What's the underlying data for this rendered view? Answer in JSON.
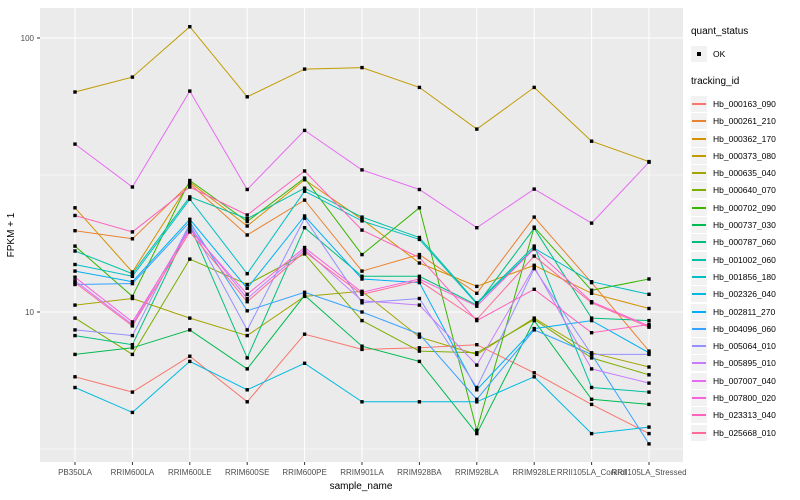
{
  "chart_data": {
    "type": "line",
    "xlabel": "sample_name",
    "ylabel": "FPKM + 1",
    "y_scale": "log10",
    "y_ticks": [
      100,
      10
    ],
    "y_minor_ticks": [
      31.62,
      3.162
    ],
    "ylim": [
      2.84,
      128.6
    ],
    "grid": "on",
    "panel_bg": "#EBEBEB",
    "grid_color": "#FFFFFF",
    "tick_label_color": "#4D4D4D",
    "point_color": "#000000",
    "categories": [
      "PB350LA",
      "RRIM600LA",
      "RRIM600LE",
      "RRIM600SE",
      "RRIM600PE",
      "RRIM901LA",
      "RRIM928BA",
      "RRIM928LA",
      "RRIM928LE",
      "RRII105LA_Control",
      "RRII105LA_Stressed"
    ],
    "series": [
      {
        "name": "Hb_000163_090",
        "color": "#F8766D",
        "values": [
          5.8,
          5.1,
          6.9,
          4.7,
          8.3,
          7.3,
          7.4,
          7.6,
          6.0,
          4.6,
          3.6
        ]
      },
      {
        "name": "Hb_000261_210",
        "color": "#EA8331",
        "values": [
          19.8,
          18.5,
          29.4,
          19.1,
          25.6,
          14.1,
          16.2,
          11.7,
          22.2,
          12.8,
          7.2
        ]
      },
      {
        "name": "Hb_000362_170",
        "color": "#D89000",
        "values": [
          24.0,
          14.0,
          29.8,
          20.6,
          30.4,
          21.8,
          15.1,
          12.4,
          14.8,
          11.7,
          10.3
        ]
      },
      {
        "name": "Hb_000373_080",
        "color": "#C09B00",
        "values": [
          63.5,
          72,
          110,
          61,
          77,
          78,
          66,
          46.5,
          66,
          42,
          35.4
        ]
      },
      {
        "name": "Hb_000635_040",
        "color": "#A3A500",
        "values": [
          10.6,
          11.2,
          9.5,
          8.2,
          11.4,
          11.9,
          8.1,
          7.0,
          9.5,
          7.1,
          6.3
        ]
      },
      {
        "name": "Hb_000640_070",
        "color": "#7CAE00",
        "values": [
          9.5,
          7.0,
          15.6,
          12.6,
          16.3,
          9.3,
          7.2,
          7.1,
          9.4,
          6.8,
          5.9
        ]
      },
      {
        "name": "Hb_000702_090",
        "color": "#39B600",
        "values": [
          17.4,
          11.4,
          30.2,
          21.4,
          30.8,
          16.2,
          24.0,
          3.7,
          20.4,
          12.0,
          13.2
        ]
      },
      {
        "name": "Hb_000737_030",
        "color": "#00BB4E",
        "values": [
          7.0,
          7.4,
          8.6,
          6.2,
          11.5,
          7.5,
          6.6,
          3.6,
          9.3,
          4.8,
          4.6
        ]
      },
      {
        "name": "Hb_000787_060",
        "color": "#00BF7D",
        "values": [
          8.2,
          7.6,
          20.7,
          6.8,
          20.3,
          13.5,
          13.5,
          10.6,
          20.2,
          9.5,
          9.3
        ]
      },
      {
        "name": "Hb_001002_060",
        "color": "#00C1A3",
        "values": [
          16.7,
          13.8,
          26.3,
          21.9,
          28.3,
          22.2,
          18.7,
          10.8,
          17.4,
          5.3,
          5.1
        ]
      },
      {
        "name": "Hb_001856_180",
        "color": "#00BFC4",
        "values": [
          14.9,
          13.5,
          25.8,
          13.8,
          27.6,
          21.5,
          18.4,
          10.7,
          17.1,
          12.9,
          11.6
        ]
      },
      {
        "name": "Hb_002326_040",
        "color": "#00BAE0",
        "values": [
          5.3,
          4.3,
          6.6,
          5.2,
          6.5,
          4.7,
          4.7,
          4.7,
          5.8,
          3.6,
          3.8
        ]
      },
      {
        "name": "Hb_002811_270",
        "color": "#00B0F6",
        "values": [
          14.1,
          12.9,
          21.8,
          12.2,
          22.4,
          13.2,
          12.8,
          5.2,
          8.7,
          9.3,
          7.1
        ]
      },
      {
        "name": "Hb_004096_060",
        "color": "#35A2FF",
        "values": [
          12.6,
          12.7,
          21.3,
          10.1,
          11.8,
          10.0,
          8.3,
          4.8,
          8.6,
          7.0,
          3.3
        ]
      },
      {
        "name": "Hb_005064_010",
        "color": "#9590FF",
        "values": [
          8.6,
          8.2,
          21.0,
          8.6,
          22.0,
          10.8,
          11.2,
          5.3,
          14.4,
          7.0,
          7.0
        ]
      },
      {
        "name": "Hb_005895_010",
        "color": "#C77CFF",
        "values": [
          13.0,
          9.0,
          20.4,
          11.2,
          16.9,
          11.0,
          10.6,
          6.4,
          14.6,
          6.2,
          5.5
        ]
      },
      {
        "name": "Hb_007007_040",
        "color": "#E76BF3",
        "values": [
          41,
          28.6,
          64,
          28,
          46,
          33,
          28,
          20.3,
          28.1,
          21.1,
          35.2
        ]
      },
      {
        "name": "Hb_007800_020",
        "color": "#FA62DB",
        "values": [
          13.4,
          9.2,
          20.0,
          11.6,
          17.2,
          11.8,
          13.2,
          10.5,
          17.0,
          10.9,
          8.9
        ]
      },
      {
        "name": "Hb_023313_040",
        "color": "#FF62BC",
        "values": [
          22.5,
          19.6,
          28.6,
          22.6,
          32.7,
          19.9,
          15.8,
          9.3,
          12.1,
          8.4,
          9.0
        ]
      },
      {
        "name": "Hb_025668_010",
        "color": "#FF6A98",
        "values": [
          12.8,
          8.9,
          19.6,
          10.9,
          16.6,
          11.6,
          13.0,
          9.4,
          16.0,
          10.8,
          8.8
        ]
      }
    ],
    "legend": {
      "quant_title": "quant_status",
      "quant_items": [
        {
          "label": "OK"
        }
      ],
      "tracking_title": "tracking_id"
    }
  }
}
